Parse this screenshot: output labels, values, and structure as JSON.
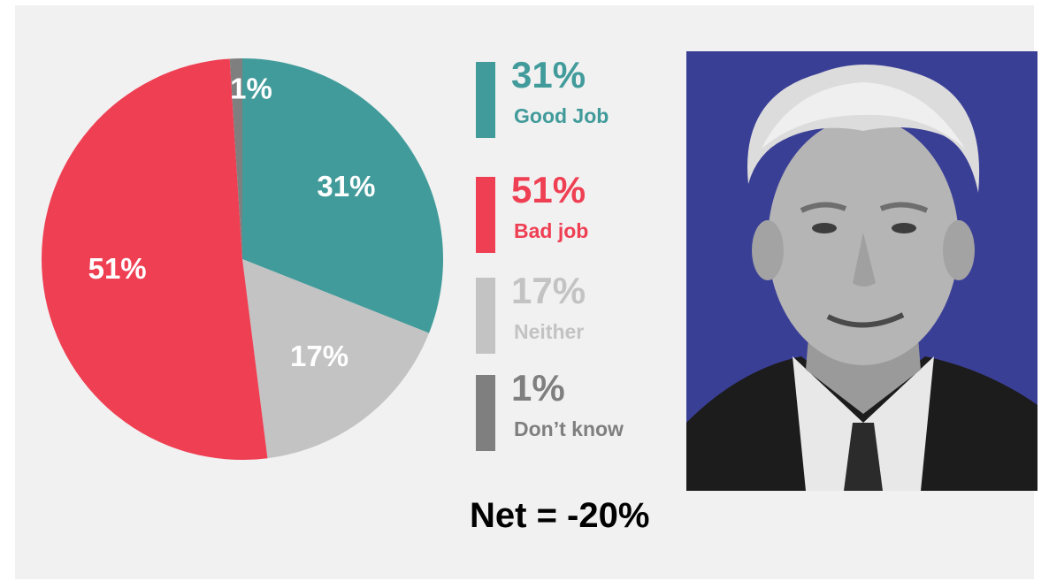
{
  "chart_data": {
    "type": "pie",
    "slices": [
      {
        "label": "Good Job",
        "value": 31,
        "display": "31%",
        "color": "#429b9b"
      },
      {
        "label": "Neither",
        "value": 17,
        "display": "17%",
        "color": "#c3c3c3"
      },
      {
        "label": "Bad job",
        "value": 51,
        "display": "51%",
        "color": "#ef3f53"
      },
      {
        "label": "Don’t know",
        "value": 1,
        "display": "1%",
        "color": "#7f7f7f"
      }
    ],
    "legend": [
      {
        "pct": "31%",
        "name": "Good Job",
        "color": "#429b9b"
      },
      {
        "pct": "51%",
        "name": "Bad job",
        "color": "#ef3f53"
      },
      {
        "pct": "17%",
        "name": "Neither",
        "color": "#c3c3c3"
      },
      {
        "pct": "1%",
        "name": "Don’t know",
        "color": "#7f7f7f"
      }
    ]
  },
  "net_text": "Net = -20%",
  "portrait": {
    "icon": "person-portrait-icon",
    "background_color": "#3a3f96"
  }
}
